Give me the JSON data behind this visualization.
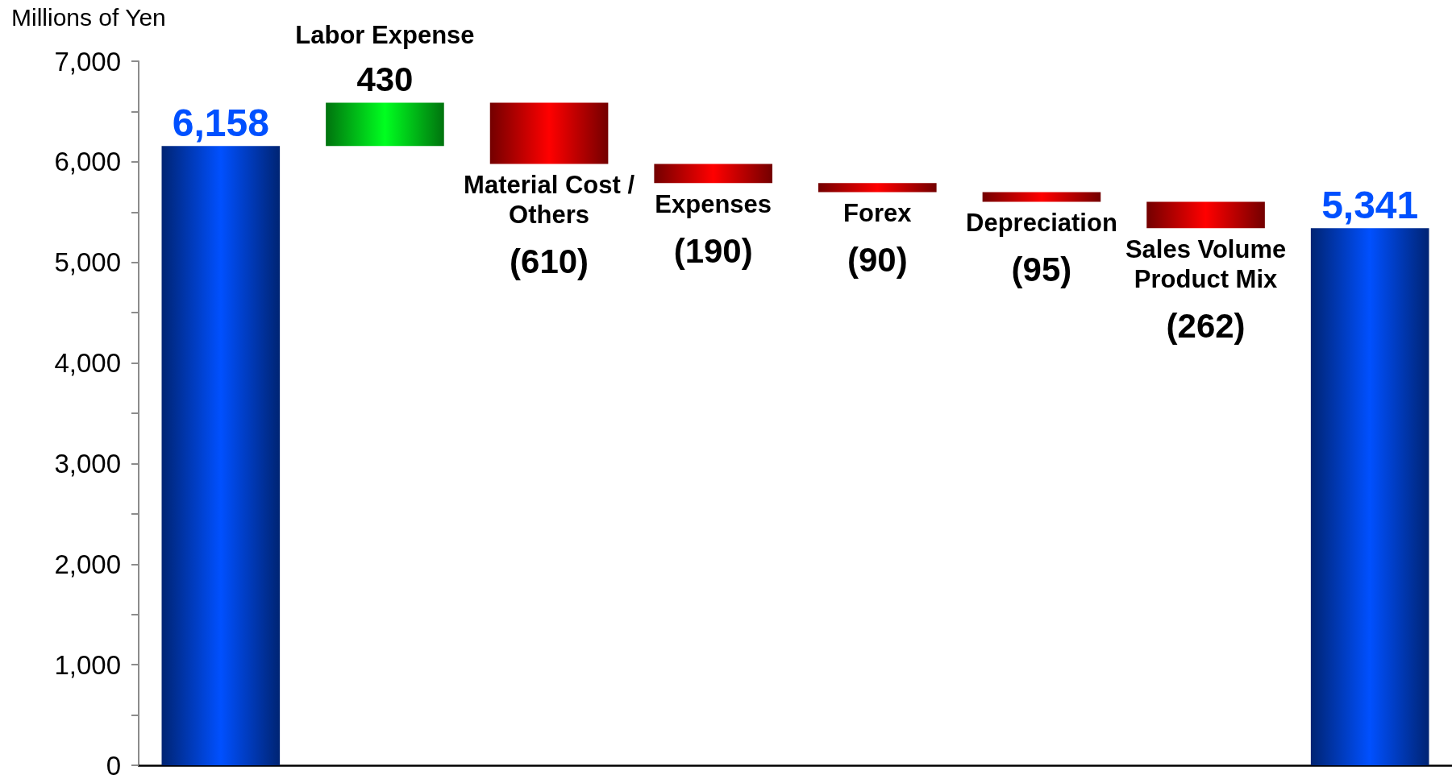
{
  "chart_data": {
    "type": "bar",
    "ylabel": "Millions of Yen",
    "categories": [
      null,
      "Labor Expense",
      "Material Cost / Others",
      "Expenses",
      "Forex",
      "Depreciation",
      "Sales Volume Product Mix",
      null
    ],
    "values": [
      6158,
      430,
      -610,
      -190,
      -90,
      -95,
      -262,
      5341
    ],
    "base": [
      0,
      6158,
      6588,
      5978,
      5788,
      5698,
      5603,
      0
    ],
    "value_labels": [
      "6,158",
      "430",
      "(610)",
      "(190)",
      "(90)",
      "(95)",
      "(262)",
      "5,341"
    ],
    "colors": [
      "#0050ff",
      "#00ff20",
      "#ff0000",
      "#ff0000",
      "#ff0000",
      "#ff0000",
      "#ff0000",
      "#0050ff"
    ],
    "ylim": [
      0,
      7000
    ],
    "yticks": [
      0,
      {
        "value": 500,
        "label": null
      },
      {
        "value": 1000,
        "label": "1,000"
      },
      {
        "value": 1500,
        "label": null
      },
      {
        "value": 2000,
        "label": "2,000"
      },
      {
        "value": 2500,
        "label": null
      },
      {
        "value": 3000,
        "label": "3,000"
      },
      {
        "value": 3500,
        "label": null
      },
      {
        "value": 4000,
        "label": "4,000"
      },
      {
        "value": 4500,
        "label": null
      },
      {
        "value": 5000,
        "label": "5,000"
      },
      {
        "value": 5500,
        "label": null
      },
      {
        "value": 6000,
        "label": "6,000"
      },
      {
        "value": 6500,
        "label": null
      },
      {
        "value": 7000,
        "label": "7,000"
      }
    ],
    "tick_labels": "y"
  }
}
